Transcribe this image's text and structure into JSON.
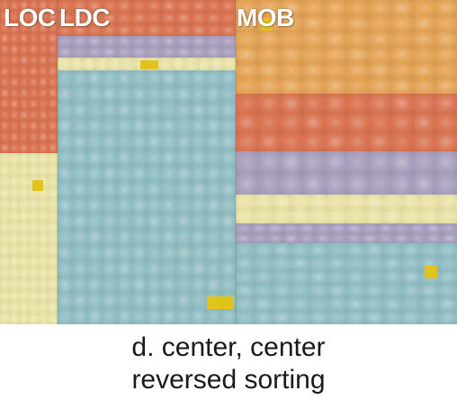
{
  "labels": {
    "loc": "LOC",
    "ldc": "LDC",
    "mob": "MOB"
  },
  "caption": {
    "line1": "d. center, center",
    "line2": "reversed sorting"
  },
  "colors": {
    "orange": "#e3a151",
    "red": "#d86f4c",
    "purple": "#a69cbc",
    "yellow": "#e8e2a4",
    "teal": "#8ebcc1",
    "highlight": "#e2c21c"
  }
}
